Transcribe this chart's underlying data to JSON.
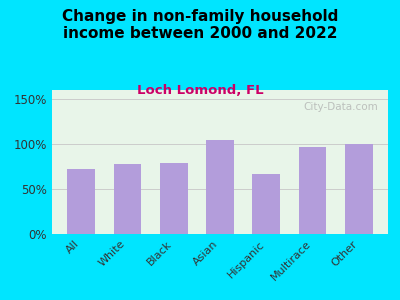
{
  "title": "Change in non-family household\nincome between 2000 and 2022",
  "subtitle": "Loch Lomond, FL",
  "categories": [
    "All",
    "White",
    "Black",
    "Asian",
    "Hispanic",
    "Multirace",
    "Other"
  ],
  "values": [
    72,
    78,
    79,
    104,
    67,
    97,
    100
  ],
  "bar_color": "#b39ddb",
  "title_fontsize": 11,
  "subtitle_fontsize": 9.5,
  "subtitle_color": "#cc0066",
  "title_color": "#000000",
  "background_outer": "#00e5ff",
  "background_plot": "#e8f5e9",
  "background_plot_top": "#f0f4f0",
  "ylim": [
    0,
    160
  ],
  "yticks": [
    0,
    50,
    100,
    150
  ],
  "ytick_labels": [
    "0%",
    "50%",
    "100%",
    "150%"
  ],
  "watermark": "City-Data.com",
  "watermark_color": "#aaaaaa"
}
